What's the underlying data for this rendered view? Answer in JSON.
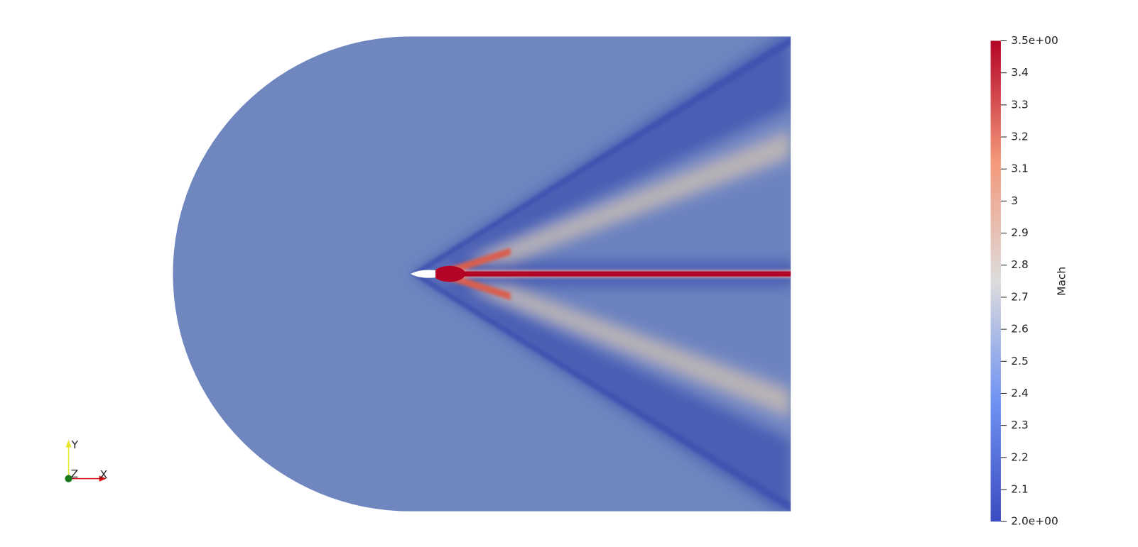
{
  "colorbar": {
    "title": "Mach",
    "range": [
      2,
      3.5
    ],
    "ticks": [
      {
        "value": 3.5,
        "label": "3.5e+00"
      },
      3.4,
      3.3,
      3.2,
      3.1,
      3,
      2.9,
      2.8,
      2.7,
      2.6,
      2.5,
      2.4,
      2.3,
      2.2,
      2.1,
      {
        "value": 2,
        "label": "2.0e+00"
      }
    ]
  },
  "axes_triad": {
    "y": "Y",
    "z": "Z",
    "x": "X"
  }
}
